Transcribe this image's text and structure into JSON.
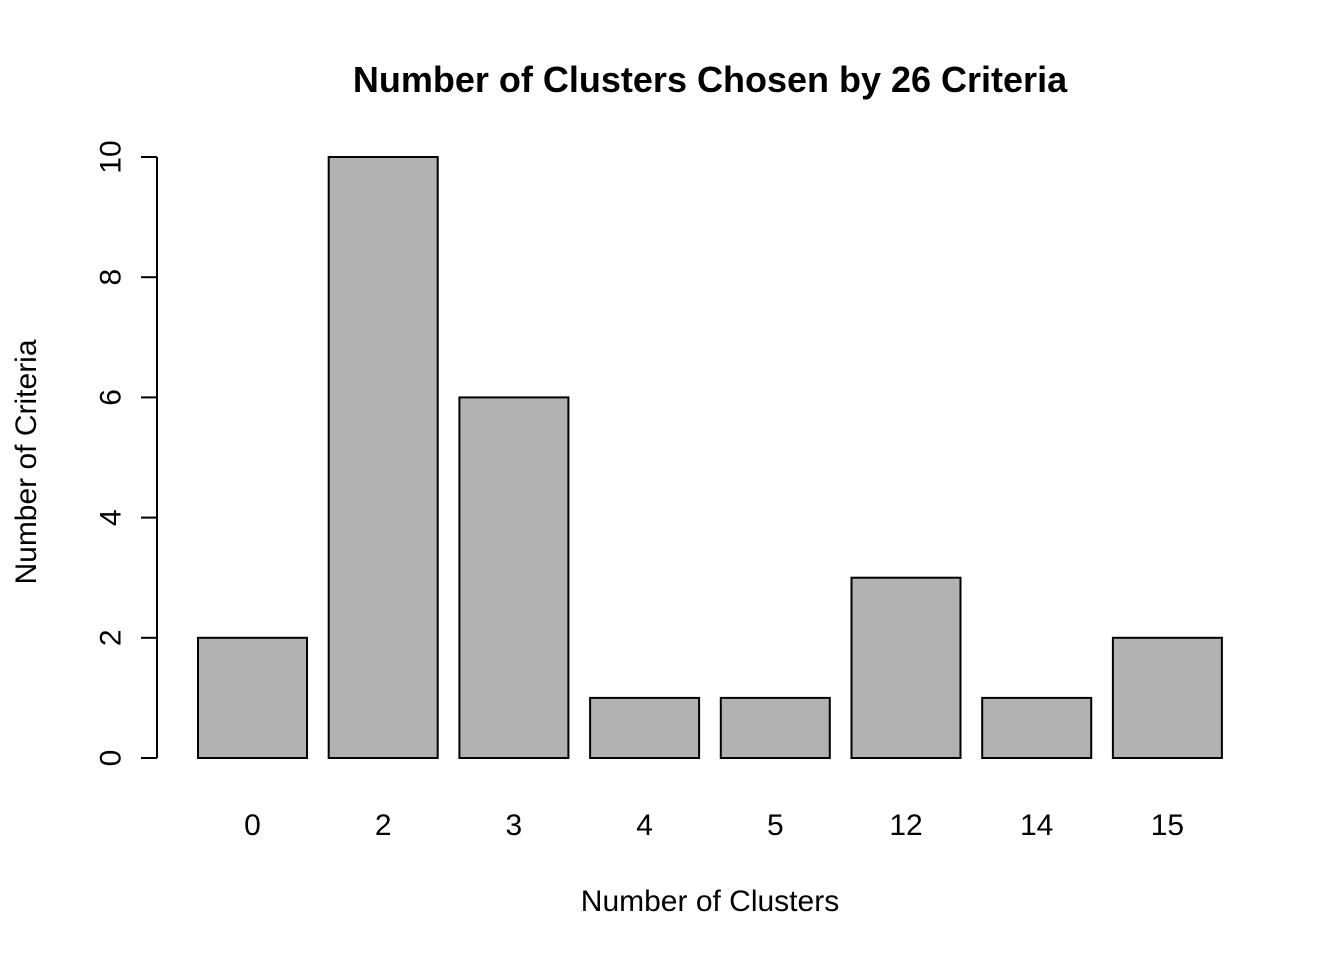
{
  "chart_data": {
    "type": "bar",
    "title": "Number of Clusters Chosen by 26 Criteria",
    "xlabel": "Number of Clusters",
    "ylabel": "Number of Criteria",
    "categories": [
      "0",
      "2",
      "3",
      "4",
      "5",
      "12",
      "14",
      "15"
    ],
    "values": [
      2,
      10,
      6,
      1,
      1,
      3,
      1,
      2
    ],
    "ylim": [
      0,
      10
    ],
    "yticks": [
      0,
      2,
      4,
      6,
      8,
      10
    ],
    "grid": false,
    "bar_color": "#b2b2b2",
    "outline_color": "#000000"
  }
}
